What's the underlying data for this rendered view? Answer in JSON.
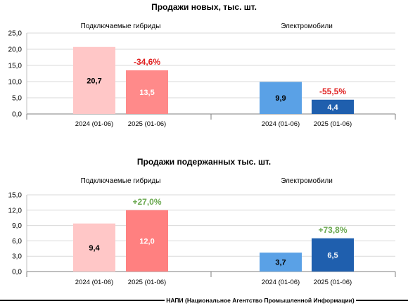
{
  "chart_data": [
    {
      "type": "bar",
      "title": "Продажи новых, тыс. шт.",
      "ylim": [
        0,
        25
      ],
      "yticks": [
        "0,0",
        "5,0",
        "10,0",
        "15,0",
        "20,0",
        "25,0"
      ],
      "ytick_values": [
        0,
        5,
        10,
        15,
        20,
        25
      ],
      "grid": true,
      "groups": [
        {
          "label": "Подключаемые гибриды",
          "categories": [
            "2024 (01-06)",
            "2025 (01-06)"
          ],
          "values": [
            20.7,
            13.5
          ],
          "value_labels": [
            "20,7",
            "13,5"
          ],
          "colors": [
            "#ffc7c7",
            "#ff8a8a"
          ],
          "label_colors": [
            "#000000",
            "#ffffff"
          ],
          "change": "-34,6%",
          "change_color": "#e02020"
        },
        {
          "label": "Электромобили",
          "categories": [
            "2024 (01-06)",
            "2025 (01-06)"
          ],
          "values": [
            9.9,
            4.4
          ],
          "value_labels": [
            "9,9",
            "4,4"
          ],
          "colors": [
            "#5aa1e6",
            "#1f5fae"
          ],
          "label_colors": [
            "#000000",
            "#ffffff"
          ],
          "change": "-55,5%",
          "change_color": "#e02020"
        }
      ]
    },
    {
      "type": "bar",
      "title": "Продажи подержанных тыс. шт.",
      "ylim": [
        0,
        15
      ],
      "yticks": [
        "0,0",
        "3,0",
        "6,0",
        "9,0",
        "12,0",
        "15,0"
      ],
      "ytick_values": [
        0,
        3,
        6,
        9,
        12,
        15
      ],
      "grid": true,
      "groups": [
        {
          "label": "Подключаемые гибриды",
          "categories": [
            "2024 (01-06)",
            "2025 (01-06)"
          ],
          "values": [
            9.4,
            12.0
          ],
          "value_labels": [
            "9,4",
            "12,0"
          ],
          "colors": [
            "#ffc7c7",
            "#ff8080"
          ],
          "label_colors": [
            "#000000",
            "#ffffff"
          ],
          "change": "+27,0%",
          "change_color": "#6aa84f"
        },
        {
          "label": "Электромобили",
          "categories": [
            "2024 (01-06)",
            "2025 (01-06)"
          ],
          "values": [
            3.7,
            6.5
          ],
          "value_labels": [
            "3,7",
            "6,5"
          ],
          "colors": [
            "#5aa1e6",
            "#1f5fae"
          ],
          "label_colors": [
            "#000000",
            "#ffffff"
          ],
          "change": "+73,8%",
          "change_color": "#6aa84f"
        }
      ]
    }
  ],
  "footer": {
    "text": "НАПИ (Национальное Агентство Промышленной Информации)"
  }
}
